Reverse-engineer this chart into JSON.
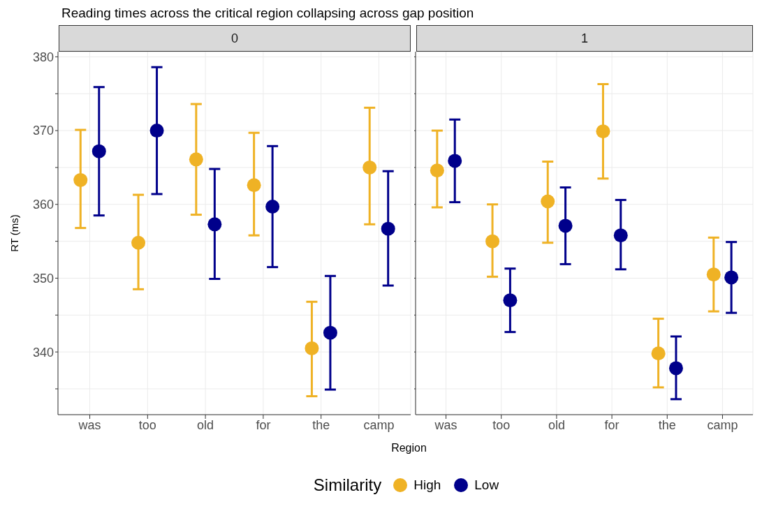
{
  "chart_data": [
    {
      "type": "scatter",
      "title": "Reading times across the critical region collapsing across gap position",
      "subtitle": "0",
      "xlabel": "Region",
      "ylabel": "RT (ms)",
      "legend_title": "Similarity",
      "legend": "bottom",
      "grid": true,
      "marker": "circle",
      "categories": [
        "was",
        "too",
        "old",
        "for",
        "the",
        "camp"
      ],
      "ylim": [
        331.5,
        380.7
      ],
      "yticks": [
        {
          "value": 335,
          "label": null
        },
        340,
        {
          "value": 345,
          "label": null
        },
        350,
        {
          "value": 355,
          "label": null
        },
        360,
        {
          "value": 365,
          "label": null
        },
        370,
        {
          "value": 375,
          "label": null
        },
        380
      ],
      "series": [
        {
          "name": "High",
          "color": "#efb225",
          "values": [
            363.3,
            354.8,
            366.1,
            362.6,
            340.5,
            365.0
          ],
          "errors": [
            [
              356.8,
              370.1
            ],
            [
              348.5,
              361.3
            ],
            [
              358.6,
              373.6
            ],
            [
              355.8,
              369.7
            ],
            [
              334.0,
              346.8
            ],
            [
              357.3,
              373.1
            ]
          ]
        },
        {
          "name": "Low",
          "color": "#00008b",
          "values": [
            367.2,
            370.0,
            357.3,
            359.7,
            342.6,
            356.7
          ],
          "errors": [
            [
              358.5,
              375.9
            ],
            [
              361.4,
              378.6
            ],
            [
              349.9,
              364.8
            ],
            [
              351.5,
              367.9
            ],
            [
              334.9,
              350.3
            ],
            [
              349.0,
              364.5
            ]
          ]
        }
      ]
    },
    {
      "type": "scatter",
      "subtitle": "1",
      "grid": true,
      "marker": "circle",
      "tick_labels": "x",
      "categories": [
        "was",
        "too",
        "old",
        "for",
        "the",
        "camp"
      ],
      "ylim": [
        331.5,
        380.7
      ],
      "yticks": [
        {
          "value": 335,
          "label": null
        },
        340,
        {
          "value": 345,
          "label": null
        },
        350,
        {
          "value": 355,
          "label": null
        },
        360,
        {
          "value": 365,
          "label": null
        },
        370,
        {
          "value": 375,
          "label": null
        },
        380
      ],
      "series": [
        {
          "color": "#efb225",
          "values": [
            364.6,
            355.0,
            360.4,
            369.9,
            339.8,
            350.5
          ],
          "errors": [
            [
              359.6,
              370.0
            ],
            [
              350.2,
              360.0
            ],
            [
              354.8,
              365.8
            ],
            [
              363.5,
              376.3
            ],
            [
              335.2,
              344.5
            ],
            [
              345.5,
              355.5
            ]
          ]
        },
        {
          "color": "#00008b",
          "values": [
            365.9,
            347.0,
            357.1,
            355.8,
            337.8,
            350.1
          ],
          "errors": [
            [
              360.3,
              371.5
            ],
            [
              342.7,
              351.3
            ],
            [
              351.9,
              362.3
            ],
            [
              351.2,
              360.6
            ],
            [
              333.6,
              342.1
            ],
            [
              345.3,
              354.9
            ]
          ]
        }
      ]
    }
  ]
}
